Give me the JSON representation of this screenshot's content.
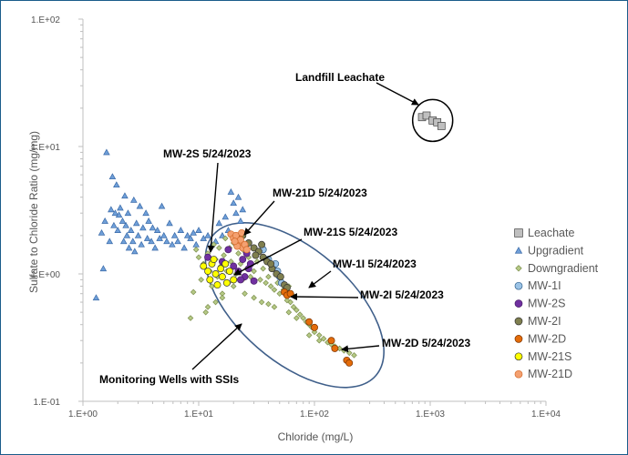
{
  "chart_data": {
    "type": "scatter",
    "xscale": "log",
    "yscale": "log",
    "xlim": [
      1,
      10000
    ],
    "ylim": [
      0.1,
      100
    ],
    "xlabel": "Chloride (mg/L)",
    "ylabel": "Sulfate to Chloride Ratio (mg/mg)",
    "x_ticks": [
      "1.E+00",
      "1.E+01",
      "1.E+02",
      "1.E+03",
      "1.E+04"
    ],
    "y_ticks": [
      "1.E-01",
      "1.E+00",
      "1.E+01",
      "1.E+02"
    ],
    "legend_position": "right",
    "series": [
      {
        "name": "Leachate",
        "marker": "square",
        "color": "#bfbfbf",
        "edge": "#404040",
        "points": [
          [
            850,
            17
          ],
          [
            930,
            17.5
          ],
          [
            1050,
            16
          ],
          [
            1150,
            15.5
          ],
          [
            1250,
            14.5
          ]
        ]
      },
      {
        "name": "Upgradient",
        "marker": "triangle",
        "color": "#6f9fd8",
        "edge": "#3a6aa8",
        "points": [
          [
            1.3,
            0.65
          ],
          [
            1.45,
            2.1
          ],
          [
            1.55,
            2.6
          ],
          [
            1.5,
            1.1
          ],
          [
            1.6,
            9.0
          ],
          [
            1.7,
            1.8
          ],
          [
            1.75,
            3.2
          ],
          [
            1.85,
            2.4
          ],
          [
            1.8,
            5.8
          ],
          [
            1.9,
            3.0
          ],
          [
            1.95,
            5.0
          ],
          [
            2.0,
            2.2
          ],
          [
            2.05,
            2.9
          ],
          [
            2.1,
            3.3
          ],
          [
            2.2,
            2.6
          ],
          [
            2.25,
            1.8
          ],
          [
            2.3,
            4.1
          ],
          [
            2.35,
            2.4
          ],
          [
            2.4,
            2.0
          ],
          [
            2.45,
            3.0
          ],
          [
            2.5,
            1.6
          ],
          [
            2.6,
            2.2
          ],
          [
            2.7,
            1.8
          ],
          [
            2.75,
            3.8
          ],
          [
            2.8,
            1.5
          ],
          [
            2.9,
            2.5
          ],
          [
            3.0,
            2.0
          ],
          [
            3.1,
            3.4
          ],
          [
            3.2,
            1.7
          ],
          [
            3.3,
            2.3
          ],
          [
            3.5,
            3.0
          ],
          [
            3.6,
            1.9
          ],
          [
            3.7,
            2.6
          ],
          [
            3.9,
            1.8
          ],
          [
            4.0,
            2.3
          ],
          [
            4.2,
            1.6
          ],
          [
            4.4,
            2.2
          ],
          [
            4.6,
            1.9
          ],
          [
            4.8,
            3.4
          ],
          [
            5.0,
            2.0
          ],
          [
            5.3,
            1.8
          ],
          [
            5.6,
            2.5
          ],
          [
            5.9,
            1.7
          ],
          [
            6.2,
            2.0
          ],
          [
            6.6,
            1.8
          ],
          [
            7.0,
            2.2
          ],
          [
            7.5,
            1.6
          ],
          [
            8.0,
            2.0
          ],
          [
            8.5,
            1.9
          ],
          [
            9.0,
            2.1
          ],
          [
            9.5,
            1.7
          ],
          [
            10,
            2.2
          ],
          [
            11,
            1.9
          ],
          [
            12,
            2.0
          ],
          [
            13,
            1.7
          ],
          [
            14,
            1.8
          ],
          [
            15,
            2.5
          ],
          [
            16,
            2.0
          ],
          [
            17,
            2.8
          ],
          [
            18,
            2.2
          ],
          [
            19,
            4.4
          ],
          [
            20,
            3.6
          ],
          [
            21,
            3.0
          ],
          [
            22,
            4.0
          ],
          [
            23,
            2.6
          ],
          [
            24,
            3.2
          ]
        ]
      },
      {
        "name": "Downgradient",
        "marker": "diamond",
        "color": "#b5c985",
        "edge": "#7d8f4e",
        "points": [
          [
            8.5,
            0.45
          ],
          [
            9,
            0.72
          ],
          [
            9.5,
            1.55
          ],
          [
            10,
            1.35
          ],
          [
            10.5,
            0.9
          ],
          [
            11,
            1.2
          ],
          [
            11.5,
            0.5
          ],
          [
            12,
            1.45
          ],
          [
            12.5,
            1.05
          ],
          [
            13,
            0.8
          ],
          [
            13.5,
            1.7
          ],
          [
            14,
            1.3
          ],
          [
            14.5,
            0.95
          ],
          [
            15,
            1.6
          ],
          [
            15.5,
            1.15
          ],
          [
            16,
            0.7
          ],
          [
            16.5,
            1.4
          ],
          [
            17,
            1.9
          ],
          [
            17.5,
            1.05
          ],
          [
            18,
            0.85
          ],
          [
            18.5,
            1.6
          ],
          [
            19,
            1.25
          ],
          [
            20,
            1.75
          ],
          [
            21,
            1.0
          ],
          [
            22,
            1.45
          ],
          [
            23,
            1.2
          ],
          [
            24,
            0.9
          ],
          [
            25,
            1.5
          ],
          [
            26,
            1.1
          ],
          [
            27,
            1.35
          ],
          [
            28,
            0.95
          ],
          [
            29,
            1.2
          ],
          [
            30,
            1.05
          ],
          [
            32,
            1.25
          ],
          [
            34,
            0.9
          ],
          [
            36,
            1.1
          ],
          [
            38,
            0.85
          ],
          [
            40,
            0.95
          ],
          [
            42,
            0.8
          ],
          [
            45,
            0.75
          ],
          [
            48,
            0.85
          ],
          [
            50,
            0.7
          ],
          [
            54,
            0.75
          ],
          [
            58,
            0.62
          ],
          [
            62,
            0.6
          ],
          [
            66,
            0.55
          ],
          [
            70,
            0.52
          ],
          [
            75,
            0.48
          ],
          [
            80,
            0.45
          ],
          [
            85,
            0.42
          ],
          [
            90,
            0.4
          ],
          [
            95,
            0.38
          ],
          [
            100,
            0.35
          ],
          [
            110,
            0.33
          ],
          [
            120,
            0.31
          ],
          [
            130,
            0.29
          ],
          [
            140,
            0.28
          ],
          [
            150,
            0.27
          ],
          [
            165,
            0.26
          ],
          [
            180,
            0.25
          ],
          [
            200,
            0.24
          ],
          [
            220,
            0.23
          ],
          [
            12,
            0.55
          ],
          [
            14,
            0.6
          ],
          [
            16,
            0.65
          ],
          [
            20,
            0.8
          ],
          [
            25,
            0.7
          ],
          [
            30,
            0.65
          ],
          [
            35,
            0.6
          ],
          [
            40,
            0.58
          ],
          [
            45,
            0.55
          ],
          [
            60,
            0.5
          ],
          [
            70,
            0.45
          ],
          [
            90,
            0.33
          ],
          [
            110,
            0.3
          ],
          [
            60,
            0.8
          ],
          [
            50,
            0.95
          ],
          [
            55,
            0.72
          ],
          [
            65,
            0.68
          ]
        ]
      },
      {
        "name": "MW-1I",
        "marker": "circle",
        "color": "#9bc3e6",
        "edge": "#2f5f8a",
        "points": [
          [
            36,
            1.55
          ],
          [
            40,
            1.3
          ],
          [
            44,
            1.15
          ],
          [
            48,
            1.05
          ],
          [
            52,
            0.85
          ],
          [
            50,
            0.95
          ],
          [
            46,
            1.2
          ]
        ]
      },
      {
        "name": "MW-2S",
        "marker": "circle",
        "color": "#7030a0",
        "edge": "#4b1f6b",
        "points": [
          [
            12,
            1.35
          ],
          [
            16,
            1.25
          ],
          [
            18,
            1.55
          ],
          [
            20,
            1.15
          ],
          [
            22,
            1.05
          ],
          [
            24,
            1.3
          ],
          [
            25,
            0.95
          ],
          [
            27,
            1.1
          ],
          [
            28,
            1.2
          ],
          [
            30,
            0.88
          ],
          [
            26,
            1.45
          ],
          [
            23,
            0.9
          ]
        ]
      },
      {
        "name": "MW-2I",
        "marker": "circle",
        "color": "#7f7f4f",
        "edge": "#333333",
        "points": [
          [
            24,
            2.0
          ],
          [
            27,
            1.75
          ],
          [
            30,
            1.6
          ],
          [
            33,
            1.5
          ],
          [
            36,
            1.35
          ],
          [
            39,
            1.25
          ],
          [
            43,
            1.1
          ],
          [
            47,
            1.0
          ],
          [
            51,
            0.95
          ],
          [
            55,
            0.82
          ],
          [
            58,
            0.78
          ],
          [
            35,
            1.7
          ],
          [
            31,
            1.4
          ],
          [
            42,
            1.2
          ]
        ]
      },
      {
        "name": "MW-2D",
        "marker": "circle",
        "color": "#e46c0a",
        "edge": "#7a3300",
        "points": [
          [
            55,
            0.72
          ],
          [
            58,
            0.68
          ],
          [
            62,
            0.7
          ],
          [
            90,
            0.42
          ],
          [
            100,
            0.38
          ],
          [
            140,
            0.3
          ],
          [
            150,
            0.26
          ],
          [
            190,
            0.21
          ],
          [
            200,
            0.2
          ]
        ]
      },
      {
        "name": "MW-21S",
        "marker": "circle",
        "color": "#ffff00",
        "edge": "#333333",
        "points": [
          [
            11,
            1.15
          ],
          [
            12,
            1.05
          ],
          [
            12.5,
            0.9
          ],
          [
            13,
            1.2
          ],
          [
            14,
            1.0
          ],
          [
            14.5,
            0.82
          ],
          [
            15.5,
            1.1
          ],
          [
            16,
            0.95
          ],
          [
            17,
            1.2
          ],
          [
            17.5,
            0.85
          ],
          [
            18.5,
            1.05
          ],
          [
            20,
            0.9
          ],
          [
            13.5,
            1.3
          ]
        ]
      },
      {
        "name": "MW-21D",
        "marker": "circle",
        "color": "#f4a070",
        "edge": "#d46a2a",
        "points": [
          [
            19,
            2.05
          ],
          [
            20,
            1.9
          ],
          [
            21,
            2.0
          ],
          [
            22,
            1.75
          ],
          [
            23,
            1.85
          ],
          [
            24,
            1.6
          ],
          [
            25,
            1.7
          ],
          [
            26,
            1.55
          ],
          [
            21.5,
            1.65
          ],
          [
            23.5,
            2.1
          ],
          [
            20.5,
            1.8
          ]
        ]
      }
    ],
    "annotations": [
      {
        "text": "Landfill Leachate",
        "target": [
          1000,
          16
        ]
      },
      {
        "text": "MW-2S 5/24/2023",
        "target": [
          12.5,
          1.4
        ]
      },
      {
        "text": "MW-21D 5/24/2023",
        "target": [
          20,
          2.05
        ]
      },
      {
        "text": "MW-21S 5/24/2023",
        "target": [
          17,
          1.2
        ]
      },
      {
        "text": "MW-1I 5/24/2023",
        "target": [
          50,
          0.95
        ]
      },
      {
        "text": "MW-2I 5/24/2023",
        "target": [
          58,
          0.7
        ]
      },
      {
        "text": "MW-2D 5/24/2023",
        "target": [
          180,
          0.26
        ]
      },
      {
        "text": "Monitoring Wells with SSIs",
        "target": [
          22,
          0.55
        ]
      }
    ]
  }
}
